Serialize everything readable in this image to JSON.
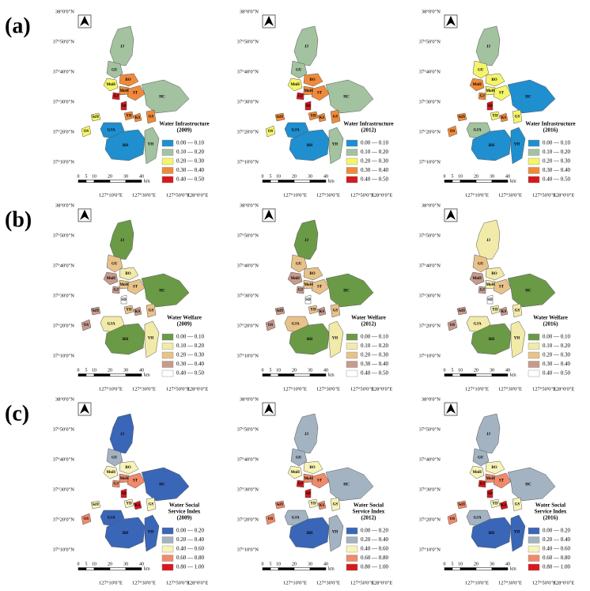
{
  "regions": [
    "JJ",
    "GU",
    "MnH",
    "BO",
    "MoH",
    "GJ",
    "ST",
    "HC",
    "SD",
    "YD",
    "KS",
    "GS",
    "SdY",
    "OS",
    "GJA",
    "BH",
    "YH"
  ],
  "lat_labels": [
    "38°0'0\"N",
    "37°50'0\"N",
    "37°40'0\"N",
    "37°30'0\"N",
    "37°20'0\"N",
    "37°10'0\"N"
  ],
  "lon_labels": [
    "127°10'0\"E",
    "127°30'0\"E",
    "127°50'0\"E",
    "128°0'0\"E"
  ],
  "scale_labels": [
    0,
    5,
    10,
    20,
    30,
    40
  ],
  "scale_unit": "km",
  "rows": [
    {
      "label": "(a)",
      "palette": [
        "#1f8fd0",
        "#a3c2a0",
        "#f5f56a",
        "#f08a3a",
        "#d7191c"
      ],
      "legend_labels": [
        "0.00 — 0.10",
        "0.10 — 0.20",
        "0.20 — 0.30",
        "0.30 — 0.40",
        "0.40 — 0.50"
      ],
      "panels": [
        {
          "title_lines": [
            "Water Infrastructure",
            "(2009)"
          ],
          "region_classes": [
            1,
            1,
            2,
            3,
            3,
            4,
            3,
            1,
            4,
            3,
            3,
            3,
            2,
            2,
            0,
            0,
            1
          ]
        },
        {
          "title_lines": [
            "Water Infrastructure",
            "(2012)"
          ],
          "region_classes": [
            1,
            1,
            2,
            3,
            3,
            4,
            3,
            1,
            4,
            3,
            3,
            3,
            3,
            2,
            0,
            0,
            1
          ]
        },
        {
          "title_lines": [
            "Water Infrastructure",
            "(2016)"
          ],
          "region_classes": [
            1,
            2,
            3,
            2,
            2,
            3,
            2,
            0,
            4,
            2,
            3,
            2,
            3,
            3,
            1,
            0,
            0
          ]
        }
      ]
    },
    {
      "label": "(b)",
      "palette": [
        "#6b9a47",
        "#f2eaa8",
        "#e8c28a",
        "#c79a8c",
        "#ffffff"
      ],
      "legend_labels": [
        "0.00 — 0.10",
        "0.10 — 0.20",
        "0.20 — 0.30",
        "0.30 — 0.40",
        "0.40 — 0.50"
      ],
      "panels": [
        {
          "title_lines": [
            "Water Welfare",
            "(2009)"
          ],
          "region_classes": [
            0,
            2,
            3,
            1,
            2,
            3,
            2,
            0,
            4,
            2,
            3,
            2,
            3,
            3,
            1,
            0,
            1
          ]
        },
        {
          "title_lines": [
            "Water Welfare",
            "(2012)"
          ],
          "region_classes": [
            0,
            2,
            3,
            2,
            2,
            3,
            2,
            0,
            4,
            2,
            3,
            2,
            3,
            3,
            2,
            0,
            1
          ]
        },
        {
          "title_lines": [
            "Water Welfare",
            "(2016)"
          ],
          "region_classes": [
            1,
            2,
            3,
            1,
            1,
            3,
            2,
            0,
            4,
            1,
            3,
            1,
            3,
            3,
            1,
            0,
            1
          ]
        }
      ]
    },
    {
      "label": "(c)",
      "palette": [
        "#3a66b8",
        "#a3b3c2",
        "#f8f4b8",
        "#f08a6a",
        "#d7191c"
      ],
      "legend_labels": [
        "0.00 — 0.20",
        "0.20 — 0.40",
        "0.40 — 0.60",
        "0.60 — 0.80",
        "0.80 — 1.00"
      ],
      "panels": [
        {
          "title_lines": [
            "Water Social",
            "Service Index",
            "(2009)"
          ],
          "region_classes": [
            0,
            1,
            2,
            2,
            3,
            3,
            3,
            0,
            4,
            2,
            4,
            2,
            2,
            3,
            0,
            0,
            0
          ]
        },
        {
          "title_lines": [
            "Water Social",
            "Service Index",
            "(2012)"
          ],
          "region_classes": [
            1,
            1,
            2,
            2,
            3,
            4,
            3,
            1,
            4,
            2,
            3,
            2,
            3,
            3,
            1,
            0,
            1
          ]
        },
        {
          "title_lines": [
            "Water Social",
            "Service Index",
            "(2016)"
          ],
          "region_classes": [
            1,
            1,
            2,
            2,
            3,
            4,
            3,
            1,
            4,
            2,
            4,
            2,
            3,
            3,
            1,
            0,
            0
          ]
        }
      ]
    }
  ]
}
